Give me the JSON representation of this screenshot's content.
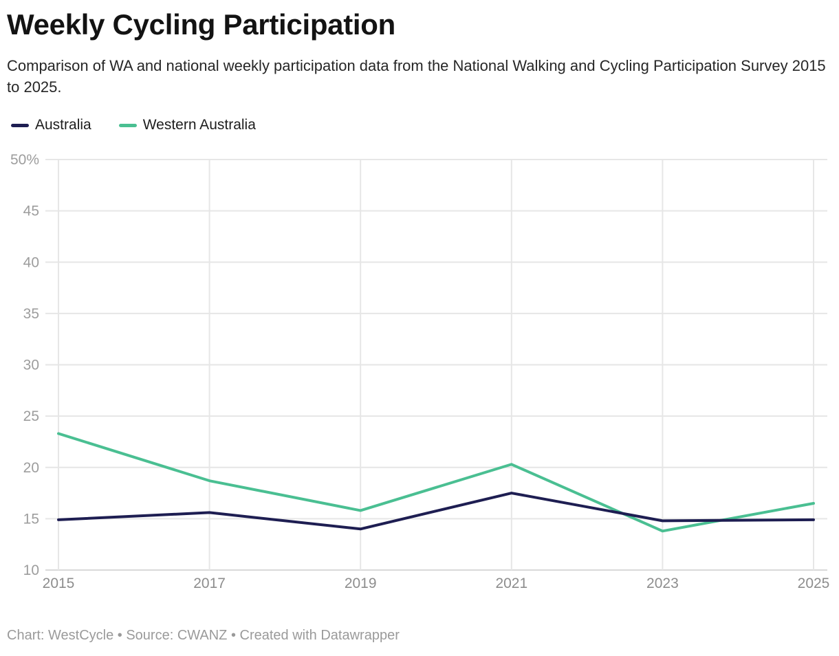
{
  "header": {
    "title": "Weekly Cycling Participation",
    "subtitle": "Comparison of WA and national weekly participation data from the National Walking and Cycling Participation Survey 2015 to 2025."
  },
  "footer": {
    "text": "Chart: WestCycle • Source: CWANZ • Created with Datawrapper"
  },
  "chart_data": {
    "type": "line",
    "x": [
      2015,
      2017,
      2019,
      2021,
      2023,
      2025
    ],
    "x_tick_labels": [
      "2015",
      "2017",
      "2019",
      "2021",
      "2023",
      "2025"
    ],
    "y_tick_labels": [
      "50%",
      "45",
      "40",
      "35",
      "30",
      "25",
      "20",
      "15",
      "10"
    ],
    "y_tick_values": [
      50,
      45,
      40,
      35,
      30,
      25,
      20,
      15,
      10
    ],
    "xlim": [
      2015,
      2025
    ],
    "ylim": [
      10,
      50
    ],
    "unit": "percent",
    "grid": true,
    "legend_position": "top-left",
    "series": [
      {
        "name": "Australia",
        "color": "#1e1e52",
        "values": [
          14.9,
          15.6,
          14.0,
          17.5,
          14.8,
          14.9
        ]
      },
      {
        "name": "Western Australia",
        "color": "#4abf92",
        "values": [
          23.3,
          18.7,
          15.8,
          20.3,
          13.8,
          16.5
        ]
      }
    ],
    "colors": {
      "grid": "#e6e6e6",
      "baseline": "#d9d9d9",
      "axis_label_y": "#9d9d9d",
      "axis_label_x": "#8d8d8d"
    }
  }
}
